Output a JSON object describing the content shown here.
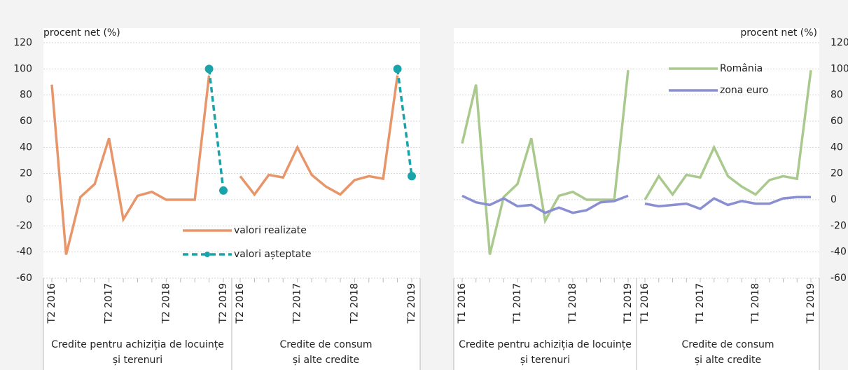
{
  "chart_data": [
    {
      "type": "line",
      "ylabel": "procent net (%)",
      "yaxis": "left",
      "ylim": [
        -60,
        120
      ],
      "yticks": [
        -60,
        -40,
        -20,
        0,
        20,
        40,
        60,
        80,
        100,
        120
      ],
      "grid": true,
      "legend": "lower center",
      "groups": [
        {
          "title": [
            "Credite pentru achiziția de locuințe",
            "și terenuri"
          ],
          "categories": [
            "T2 2016",
            null,
            null,
            null,
            "T2 2017",
            null,
            null,
            null,
            "T2 2018",
            null,
            null,
            null,
            "T2 2019"
          ]
        },
        {
          "title": [
            "Credite de consum",
            "și alte credite"
          ],
          "categories": [
            "T2 2016",
            null,
            null,
            null,
            "T2 2017",
            null,
            null,
            null,
            "T2 2018",
            null,
            null,
            null,
            "T2 2019"
          ]
        }
      ],
      "series": [
        {
          "name": "valori realizate",
          "color": "#e8956a",
          "dash": false,
          "marker": false,
          "values": [
            [
              88,
              -42,
              2,
              12,
              47,
              -15,
              3,
              6,
              0,
              0,
              0,
              95,
              null
            ],
            [
              18,
              4,
              19,
              17,
              40,
              19,
              10,
              4,
              15,
              18,
              16,
              95,
              null
            ]
          ]
        },
        {
          "name": "valori așteptate",
          "color": "#1aa3a8",
          "dash": true,
          "marker": true,
          "values": [
            [
              null,
              null,
              null,
              null,
              null,
              null,
              null,
              null,
              null,
              null,
              null,
              100,
              7
            ],
            [
              null,
              null,
              null,
              null,
              null,
              null,
              null,
              null,
              null,
              null,
              null,
              100,
              18
            ]
          ]
        }
      ]
    },
    {
      "type": "line",
      "ylabel": "procent net (%)",
      "yaxis": "right",
      "ylim": [
        -60,
        120
      ],
      "yticks": [
        -60,
        -40,
        -20,
        0,
        20,
        40,
        60,
        80,
        100,
        120
      ],
      "grid": true,
      "legend": "upper right",
      "groups": [
        {
          "title": [
            "Credite pentru achiziția de locuințe",
            "și terenuri"
          ],
          "categories": [
            "T1 2016",
            null,
            null,
            null,
            "T1 2017",
            null,
            null,
            null,
            "T1 2018",
            null,
            null,
            null,
            "T1 2019"
          ]
        },
        {
          "title": [
            "Credite de consum",
            "și alte credite"
          ],
          "categories": [
            "T1 2016",
            null,
            null,
            null,
            "T1 2017",
            null,
            null,
            null,
            "T1 2018",
            null,
            null,
            null,
            "T1 2019"
          ]
        }
      ],
      "series": [
        {
          "name": "România",
          "color": "#a9c98d",
          "dash": false,
          "marker": false,
          "values": [
            [
              43,
              88,
              -42,
              2,
              12,
              47,
              -16,
              3,
              6,
              0,
              0,
              0,
              99
            ],
            [
              0,
              18,
              4,
              19,
              17,
              40,
              18,
              10,
              4,
              15,
              18,
              16,
              99
            ]
          ]
        },
        {
          "name": "zona euro",
          "color": "#8a8fd1",
          "dash": false,
          "marker": false,
          "values": [
            [
              3,
              -2,
              -4,
              1,
              -5,
              -4,
              -10,
              -6,
              -10,
              -8,
              -2,
              -1,
              3
            ],
            [
              -3,
              -5,
              -4,
              -3,
              -7,
              1,
              -4,
              -1,
              -3,
              -3,
              1,
              2,
              2
            ]
          ]
        }
      ]
    }
  ]
}
